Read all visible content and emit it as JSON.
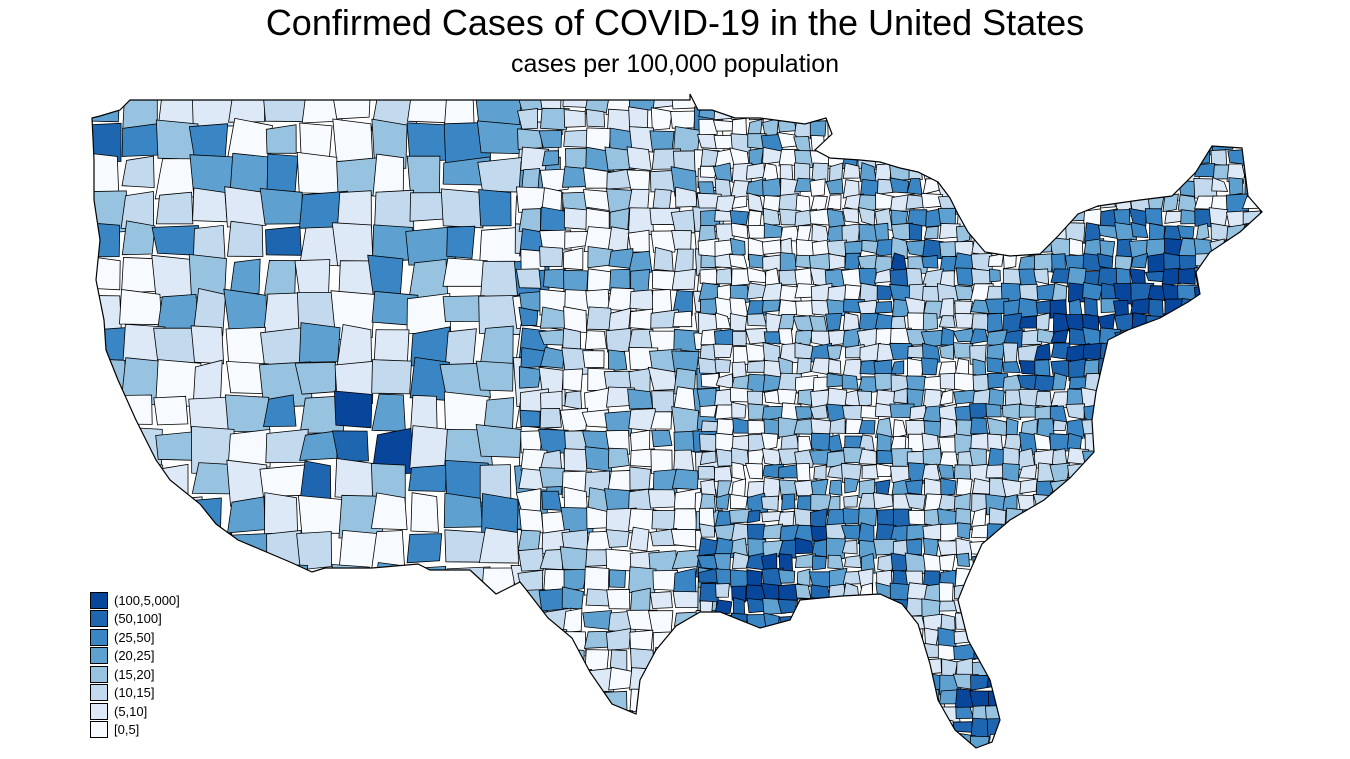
{
  "title": "Confirmed Cases of COVID-19 in the United States",
  "subtitle": "cases per 100,000 population",
  "legend": [
    {
      "label": "(100,5,000]",
      "color": "#08469c"
    },
    {
      "label": "(50,100]",
      "color": "#1e67b0"
    },
    {
      "label": "(25,50]",
      "color": "#3a86c4"
    },
    {
      "label": "(20,25]",
      "color": "#5ea1d1"
    },
    {
      "label": "(15,20]",
      "color": "#97c2e0"
    },
    {
      "label": "(10,15]",
      "color": "#c3d9ee"
    },
    {
      "label": "(5,10]",
      "color": "#dde9f6"
    },
    {
      "label": "[0,5]",
      "color": "#f7fbff"
    }
  ],
  "map": {
    "region": "Contiguous United States",
    "unit": "county",
    "fill_seed": 7
  }
}
